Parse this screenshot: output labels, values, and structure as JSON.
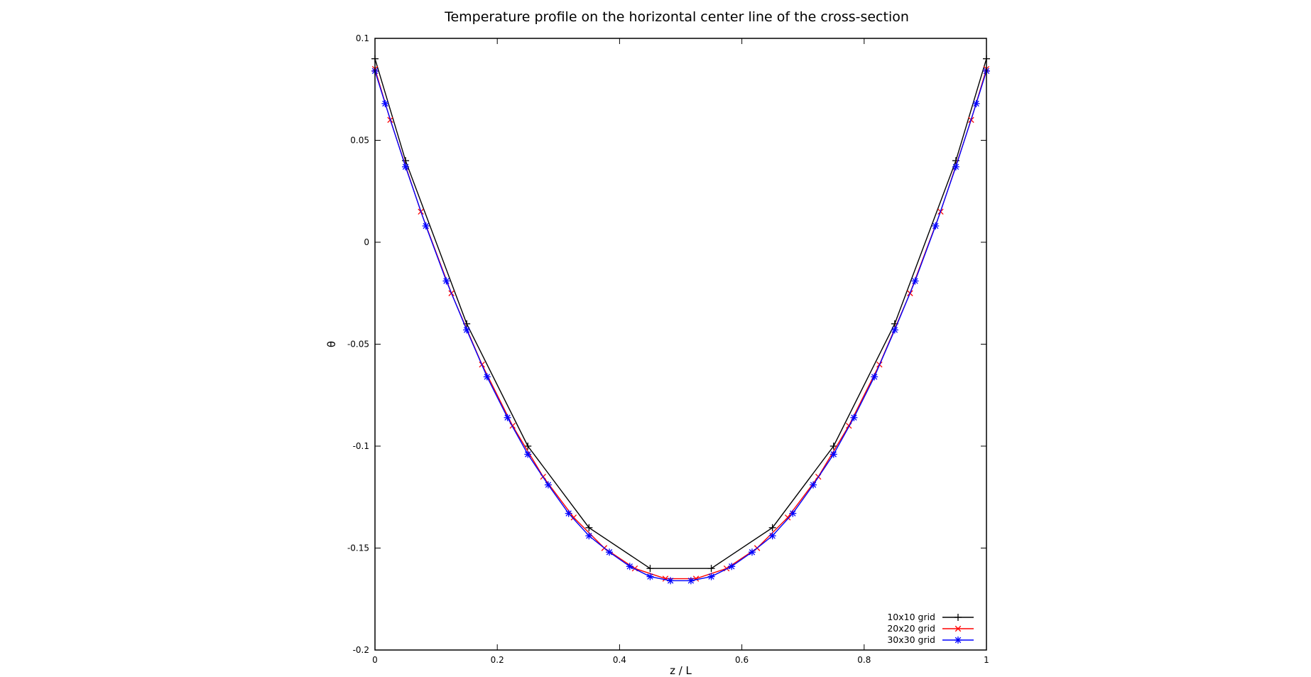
{
  "chart_data": {
    "type": "line",
    "title": "Temperature profile on the horizontal center line of the cross-section",
    "xlabel": "z / L",
    "ylabel": "θ",
    "xlim": [
      0,
      1
    ],
    "ylim": [
      -0.2,
      0.1
    ],
    "x_ticks": [
      "0",
      "0.2",
      "0.4",
      "0.6",
      "0.8",
      "1"
    ],
    "y_ticks": [
      "0.1",
      "0.05",
      "0",
      "-0.05",
      "-0.1",
      "-0.15",
      "-0.2"
    ],
    "grid": false,
    "legend_position": "bottom-right",
    "series": [
      {
        "name": "10x10 grid",
        "color": "#000000",
        "marker": "plus",
        "x": [
          0,
          0.05,
          0.15,
          0.25,
          0.35,
          0.45,
          0.55,
          0.65,
          0.75,
          0.85,
          0.95,
          1
        ],
        "y": [
          0.09,
          0.04,
          -0.04,
          -0.1,
          -0.14,
          -0.16,
          -0.16,
          -0.14,
          -0.1,
          -0.04,
          0.04,
          0.09
        ]
      },
      {
        "name": "20x20 grid",
        "color": "#ff0000",
        "marker": "cross",
        "x": [
          0,
          0.025,
          0.075,
          0.125,
          0.175,
          0.225,
          0.275,
          0.325,
          0.375,
          0.425,
          0.475,
          0.525,
          0.575,
          0.625,
          0.675,
          0.725,
          0.775,
          0.825,
          0.875,
          0.925,
          0.975,
          1
        ],
        "y": [
          0.085,
          0.06,
          0.015,
          -0.025,
          -0.06,
          -0.09,
          -0.115,
          -0.135,
          -0.15,
          -0.16,
          -0.165,
          -0.165,
          -0.16,
          -0.15,
          -0.135,
          -0.115,
          -0.09,
          -0.06,
          -0.025,
          0.015,
          0.06,
          0.085
        ]
      },
      {
        "name": "30x30 grid",
        "color": "#0000ff",
        "marker": "star",
        "x": [
          0,
          0.0167,
          0.05,
          0.0833,
          0.1167,
          0.15,
          0.1833,
          0.2167,
          0.25,
          0.2833,
          0.3167,
          0.35,
          0.3833,
          0.4167,
          0.45,
          0.4833,
          0.5167,
          0.55,
          0.5833,
          0.6167,
          0.65,
          0.6833,
          0.7167,
          0.75,
          0.7833,
          0.8167,
          0.85,
          0.8833,
          0.9167,
          0.95,
          0.9833,
          1
        ],
        "y": [
          0.084,
          0.068,
          0.037,
          0.008,
          -0.019,
          -0.043,
          -0.066,
          -0.086,
          -0.104,
          -0.119,
          -0.133,
          -0.144,
          -0.152,
          -0.159,
          -0.164,
          -0.166,
          -0.166,
          -0.164,
          -0.159,
          -0.152,
          -0.144,
          -0.133,
          -0.119,
          -0.104,
          -0.086,
          -0.066,
          -0.043,
          -0.019,
          0.008,
          0.037,
          0.068,
          0.084
        ]
      }
    ]
  }
}
